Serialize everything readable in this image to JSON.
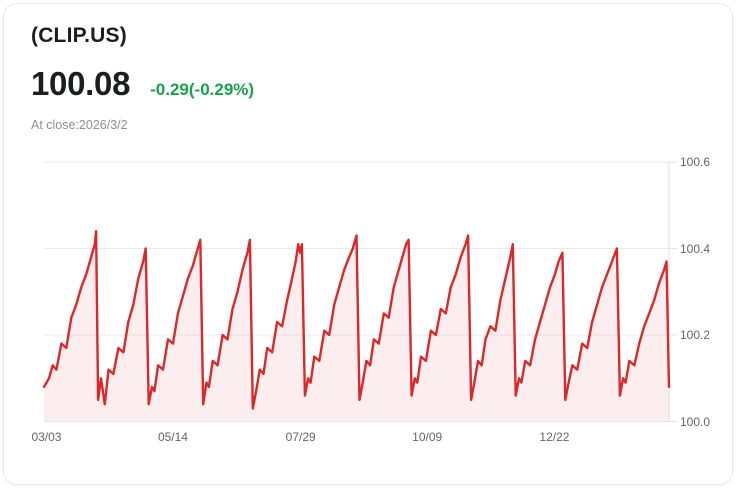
{
  "header": {
    "symbol": "(CLIP.US)",
    "price": "100.08",
    "change": "-0.29(-0.29%)",
    "at_close": "At close:2026/3/2"
  },
  "colors": {
    "line": "#d9292b",
    "fill": "rgba(218,41,43,0.08)",
    "change_green": "#16a34a",
    "grid": "#e9e9e9",
    "axis_line": "#e2e2e2",
    "axis_label": "#63666b"
  },
  "chart_data": {
    "type": "area",
    "title": "CLIP.US price history, one year to 2026/3/2",
    "xlabel": "",
    "ylabel": "",
    "x_range_days": [
      0,
      252
    ],
    "ylim": [
      100.0,
      100.6
    ],
    "grid": true,
    "legend": false,
    "y_ticks": [
      {
        "value": 100.6,
        "label": "100.6"
      },
      {
        "value": 100.4,
        "label": "100.4"
      },
      {
        "value": 100.2,
        "label": "100.2"
      },
      {
        "value": 100.0,
        "label": "100.0"
      }
    ],
    "x_ticks": [
      {
        "pos": 1,
        "label": "03/03"
      },
      {
        "pos": 52,
        "label": "05/14"
      },
      {
        "pos": 103.5,
        "label": "07/29"
      },
      {
        "pos": 154.5,
        "label": "10/09"
      },
      {
        "pos": 205.8,
        "label": "12/22"
      }
    ],
    "points": [
      [
        0,
        100.08
      ],
      [
        2,
        100.1
      ],
      [
        3.5,
        100.13
      ],
      [
        5,
        100.12
      ],
      [
        7,
        100.18
      ],
      [
        9,
        100.17
      ],
      [
        11,
        100.24
      ],
      [
        13,
        100.27
      ],
      [
        15,
        100.31
      ],
      [
        17,
        100.34
      ],
      [
        19,
        100.38
      ],
      [
        20.5,
        100.41
      ],
      [
        21,
        100.44
      ],
      [
        21.8,
        100.05
      ],
      [
        23,
        100.1
      ],
      [
        24.5,
        100.04
      ],
      [
        26,
        100.12
      ],
      [
        28,
        100.11
      ],
      [
        30,
        100.17
      ],
      [
        32,
        100.16
      ],
      [
        34,
        100.23
      ],
      [
        36,
        100.27
      ],
      [
        38,
        100.33
      ],
      [
        40,
        100.37
      ],
      [
        41,
        100.4
      ],
      [
        42.2,
        100.04
      ],
      [
        43.5,
        100.08
      ],
      [
        44.5,
        100.07
      ],
      [
        46,
        100.13
      ],
      [
        48,
        100.12
      ],
      [
        50,
        100.19
      ],
      [
        52,
        100.18
      ],
      [
        54,
        100.25
      ],
      [
        56,
        100.29
      ],
      [
        58,
        100.33
      ],
      [
        60,
        100.36
      ],
      [
        61.5,
        100.39
      ],
      [
        63,
        100.42
      ],
      [
        64.2,
        100.04
      ],
      [
        65.5,
        100.09
      ],
      [
        66.5,
        100.08
      ],
      [
        68,
        100.14
      ],
      [
        70,
        100.13
      ],
      [
        72,
        100.2
      ],
      [
        74,
        100.19
      ],
      [
        76,
        100.26
      ],
      [
        78,
        100.3
      ],
      [
        80,
        100.35
      ],
      [
        82,
        100.39
      ],
      [
        83,
        100.42
      ],
      [
        84.2,
        100.03
      ],
      [
        85.5,
        100.07
      ],
      [
        87,
        100.12
      ],
      [
        88.5,
        100.11
      ],
      [
        90,
        100.17
      ],
      [
        92,
        100.16
      ],
      [
        94,
        100.23
      ],
      [
        96,
        100.22
      ],
      [
        98,
        100.28
      ],
      [
        100,
        100.33
      ],
      [
        101.5,
        100.37
      ],
      [
        102.5,
        100.41
      ],
      [
        103.3,
        100.39
      ],
      [
        104,
        100.41
      ],
      [
        105.2,
        100.06
      ],
      [
        106.5,
        100.1
      ],
      [
        107.5,
        100.09
      ],
      [
        109,
        100.15
      ],
      [
        111,
        100.14
      ],
      [
        113,
        100.21
      ],
      [
        115,
        100.2
      ],
      [
        117,
        100.27
      ],
      [
        119,
        100.31
      ],
      [
        121,
        100.35
      ],
      [
        123,
        100.38
      ],
      [
        124.5,
        100.4
      ],
      [
        126,
        100.43
      ],
      [
        127.2,
        100.05
      ],
      [
        128.5,
        100.09
      ],
      [
        130,
        100.14
      ],
      [
        131.5,
        100.13
      ],
      [
        133,
        100.19
      ],
      [
        135,
        100.18
      ],
      [
        137,
        100.25
      ],
      [
        139,
        100.24
      ],
      [
        141,
        100.31
      ],
      [
        143,
        100.35
      ],
      [
        145,
        100.39
      ],
      [
        146,
        100.41
      ],
      [
        147,
        100.42
      ],
      [
        148.2,
        100.06
      ],
      [
        149.5,
        100.1
      ],
      [
        150.5,
        100.09
      ],
      [
        152,
        100.15
      ],
      [
        154,
        100.14
      ],
      [
        156,
        100.21
      ],
      [
        158,
        100.2
      ],
      [
        160,
        100.26
      ],
      [
        162,
        100.25
      ],
      [
        164,
        100.31
      ],
      [
        166,
        100.34
      ],
      [
        168,
        100.38
      ],
      [
        170,
        100.41
      ],
      [
        171,
        100.43
      ],
      [
        172.2,
        100.05
      ],
      [
        173.5,
        100.09
      ],
      [
        175,
        100.14
      ],
      [
        176.5,
        100.13
      ],
      [
        178,
        100.19
      ],
      [
        180,
        100.22
      ],
      [
        182,
        100.21
      ],
      [
        184,
        100.28
      ],
      [
        186,
        100.33
      ],
      [
        188,
        100.38
      ],
      [
        189,
        100.41
      ],
      [
        190.2,
        100.06
      ],
      [
        191.5,
        100.1
      ],
      [
        192.5,
        100.09
      ],
      [
        194,
        100.14
      ],
      [
        196,
        100.13
      ],
      [
        198,
        100.19
      ],
      [
        200,
        100.23
      ],
      [
        202,
        100.27
      ],
      [
        204,
        100.31
      ],
      [
        206,
        100.34
      ],
      [
        207.5,
        100.37
      ],
      [
        209,
        100.39
      ],
      [
        210.2,
        100.05
      ],
      [
        211.5,
        100.09
      ],
      [
        213,
        100.13
      ],
      [
        215,
        100.12
      ],
      [
        217,
        100.18
      ],
      [
        219,
        100.17
      ],
      [
        221,
        100.23
      ],
      [
        223,
        100.27
      ],
      [
        225,
        100.31
      ],
      [
        227,
        100.34
      ],
      [
        229,
        100.37
      ],
      [
        231,
        100.4
      ],
      [
        232.2,
        100.06
      ],
      [
        233.5,
        100.1
      ],
      [
        234.5,
        100.09
      ],
      [
        236,
        100.14
      ],
      [
        238,
        100.13
      ],
      [
        240,
        100.18
      ],
      [
        242,
        100.22
      ],
      [
        244,
        100.25
      ],
      [
        246,
        100.28
      ],
      [
        248,
        100.32
      ],
      [
        250,
        100.35
      ],
      [
        251,
        100.37
      ],
      [
        252,
        100.08
      ]
    ]
  }
}
